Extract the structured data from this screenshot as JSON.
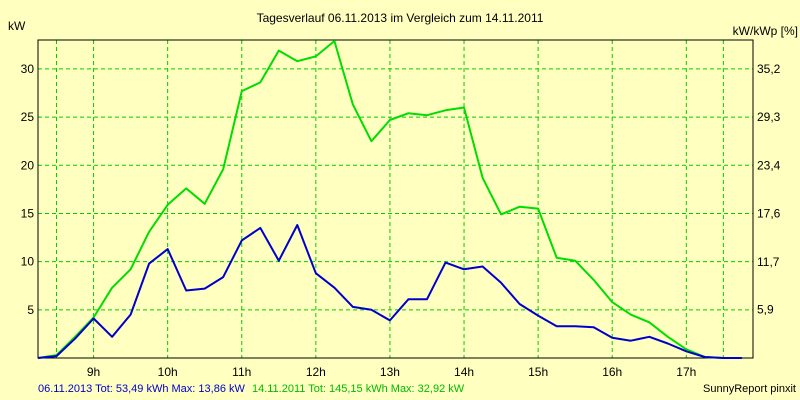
{
  "chart_data": {
    "type": "line",
    "title": "Tagesverlauf 06.11.2013 im Vergleich zum 14.11.2011",
    "ylabel_left": "kW",
    "ylabel_right": "kW/kWp [%]",
    "x_range": [
      8.25,
      17.9
    ],
    "ylim": [
      0,
      33
    ],
    "x_ticks": [
      {
        "value": 9,
        "label": "9h"
      },
      {
        "value": 10,
        "label": "10h"
      },
      {
        "value": 11,
        "label": "11h"
      },
      {
        "value": 12,
        "label": "12h"
      },
      {
        "value": 13,
        "label": "13h"
      },
      {
        "value": 14,
        "label": "14h"
      },
      {
        "value": 15,
        "label": "15h"
      },
      {
        "value": 16,
        "label": "16h"
      },
      {
        "value": 17,
        "label": "17h"
      }
    ],
    "y_ticks_left": [
      {
        "value": 5,
        "label": "5"
      },
      {
        "value": 10,
        "label": "10"
      },
      {
        "value": 15,
        "label": "15"
      },
      {
        "value": 20,
        "label": "20"
      },
      {
        "value": 25,
        "label": "25"
      },
      {
        "value": 30,
        "label": "30"
      }
    ],
    "y_ticks_right": [
      {
        "value": 5.9,
        "label": "5,9"
      },
      {
        "value": 11.7,
        "label": "11,7"
      },
      {
        "value": 17.6,
        "label": "17,6"
      },
      {
        "value": 23.4,
        "label": "23,4"
      },
      {
        "value": 29.3,
        "label": "29,3"
      },
      {
        "value": 35.2,
        "label": "35,2"
      }
    ],
    "right_axis_max": 38.7,
    "vertical_grid_extra": [
      8.5,
      17.5
    ],
    "grid": true,
    "series": [
      {
        "name": "06.11.2013",
        "color": "#0000cc",
        "x": [
          8.25,
          8.5,
          8.75,
          9.0,
          9.25,
          9.5,
          9.75,
          10.0,
          10.25,
          10.5,
          10.75,
          11.0,
          11.25,
          11.5,
          11.75,
          12.0,
          12.25,
          12.5,
          12.75,
          13.0,
          13.25,
          13.5,
          13.75,
          14.0,
          14.25,
          14.5,
          14.75,
          15.0,
          15.25,
          15.5,
          15.75,
          16.0,
          16.25,
          16.5,
          16.75,
          17.0,
          17.25,
          17.5,
          17.75
        ],
        "values": [
          0,
          0.2,
          2,
          4.1,
          2.2,
          4.5,
          9.8,
          11.3,
          7.0,
          7.2,
          8.4,
          12.2,
          13.5,
          10.1,
          13.8,
          8.8,
          7.3,
          5.3,
          5.0,
          3.9,
          6.1,
          6.1,
          9.9,
          9.2,
          9.5,
          7.8,
          5.6,
          4.4,
          3.3,
          3.3,
          3.2,
          2.1,
          1.8,
          2.2,
          1.5,
          0.7,
          0.1,
          0,
          0
        ]
      },
      {
        "name": "14.11.2011",
        "color": "#00dd00",
        "x": [
          8.25,
          8.5,
          8.75,
          9.0,
          9.25,
          9.5,
          9.75,
          10.0,
          10.25,
          10.5,
          10.75,
          11.0,
          11.25,
          11.5,
          11.75,
          12.0,
          12.25,
          12.5,
          12.75,
          13.0,
          13.25,
          13.5,
          13.75,
          14.0,
          14.25,
          14.5,
          14.75,
          15.0,
          15.25,
          15.5,
          15.75,
          16.0,
          16.25,
          16.5,
          16.75,
          17.0,
          17.25,
          17.5,
          17.75
        ],
        "values": [
          0,
          0.3,
          2.2,
          4.2,
          7.3,
          9.2,
          13.1,
          15.9,
          17.6,
          16.0,
          19.6,
          27.7,
          28.6,
          31.9,
          30.8,
          31.3,
          32.9,
          26.3,
          22.5,
          24.7,
          25.4,
          25.2,
          25.7,
          26.0,
          18.7,
          14.9,
          15.7,
          15.5,
          10.4,
          10.1,
          8.1,
          5.8,
          4.5,
          3.7,
          2.2,
          0.9,
          0.1,
          0,
          0
        ]
      }
    ],
    "footer": {
      "s1_text": "06.11.2013 Tot: 53,49 kWh Max: 13,86 kW",
      "s2_text": "14.11.2011 Tot: 145,15 kWh Max: 32,92 kW",
      "credit": "SunnyReport pinxit"
    }
  }
}
